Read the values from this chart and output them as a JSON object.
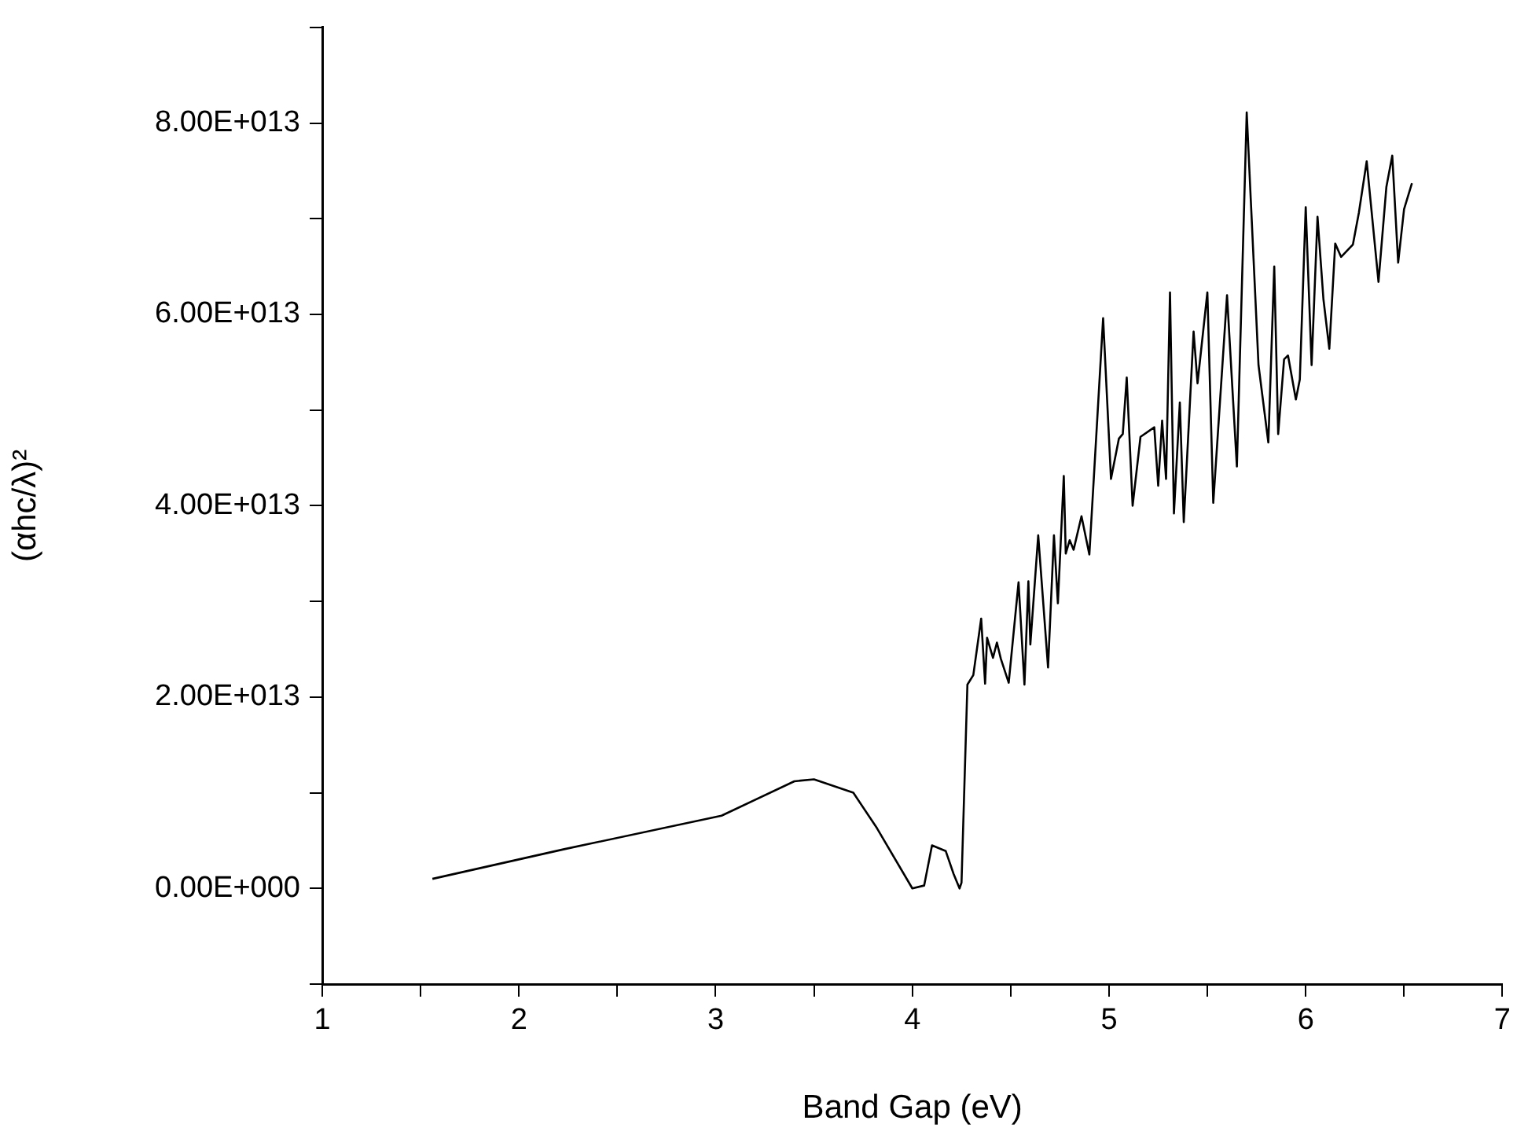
{
  "chart_data": {
    "type": "line",
    "xlabel": "Band Gap (eV)",
    "ylabel": "(αhc/λ)²",
    "series": [
      {
        "color": "#000000",
        "x": [
          1.56,
          2.23,
          3.03,
          3.4,
          3.5,
          3.7,
          3.82,
          4.0,
          4.06,
          4.1,
          4.17,
          4.21,
          4.24,
          4.25,
          4.28,
          4.31,
          4.35,
          4.37,
          4.38,
          4.41,
          4.43,
          4.45,
          4.49,
          4.54,
          4.57,
          4.59,
          4.6,
          4.64,
          4.69,
          4.72,
          4.74,
          4.77,
          4.78,
          4.8,
          4.82,
          4.86,
          4.9,
          4.97,
          5.01,
          5.05,
          5.07,
          5.09,
          5.12,
          5.16,
          5.23,
          5.25,
          5.27,
          5.29,
          5.31,
          5.33,
          5.36,
          5.38,
          5.43,
          5.45,
          5.5,
          5.53,
          5.6,
          5.65,
          5.7,
          5.76,
          5.81,
          5.84,
          5.86,
          5.89,
          5.91,
          5.95,
          5.97,
          6.0,
          6.03,
          6.06,
          6.09,
          6.12,
          6.15,
          6.18,
          6.24,
          6.27,
          6.31,
          6.37,
          6.41,
          6.44,
          6.47,
          6.5,
          6.54
        ],
        "values": [
          1000000000000.0,
          4100000000000.0,
          7600000000000.0,
          11200000000000.0,
          11400000000000.0,
          10000000000000.0,
          6300000000000.0,
          0,
          300000000000.0,
          4500000000000.0,
          3900000000000.0,
          1500000000000.0,
          0,
          600000000000.0,
          21300000000000.0,
          22300000000000.0,
          28200000000000.0,
          21400000000000.0,
          26200000000000.0,
          24100000000000.0,
          25700000000000.0,
          24000000000000.0,
          21500000000000.0,
          32000000000000.0,
          21300000000000.0,
          32100000000000.0,
          25500000000000.0,
          36900000000000.0,
          23100000000000.0,
          36900000000000.0,
          29800000000000.0,
          43100000000000.0,
          35000000000000.0,
          36400000000000.0,
          35400000000000.0,
          38900000000000.0,
          34900000000000.0,
          59600000000000.0,
          42800000000000.0,
          47000000000000.0,
          47500000000000.0,
          53400000000000.0,
          40000000000000.0,
          47200000000000.0,
          48200000000000.0,
          42100000000000.0,
          48900000000000.0,
          42800000000000.0,
          62300000000000.0,
          39200000000000.0,
          50800000000000.0,
          38300000000000.0,
          58200000000000.0,
          52800000000000.0,
          62300000000000.0,
          40300000000000.0,
          62000000000000.0,
          44100000000000.0,
          81100000000000.0,
          54700000000000.0,
          46600000000000.0,
          65000000000000.0,
          47500000000000.0,
          55300000000000.0,
          55700000000000.0,
          51100000000000.0,
          53200000000000.0,
          71200000000000.0,
          54700000000000.0,
          70200000000000.0,
          61600000000000.0,
          56400000000000.0,
          67400000000000.0,
          66000000000000.0,
          67300000000000.0,
          70600000000000.0,
          76000000000000.0,
          63400000000000.0,
          73300000000000.0,
          76600000000000.0,
          65400000000000.0,
          71000000000000.0,
          73700000000000.0
        ]
      }
    ],
    "xlim": [
      1,
      7
    ],
    "xticks": [
      1,
      {
        "value": 1.5,
        "label": null
      },
      2,
      {
        "value": 2.5,
        "label": null
      },
      3,
      {
        "value": 3.5,
        "label": null
      },
      4,
      {
        "value": 4.5,
        "label": null
      },
      5,
      {
        "value": 5.5,
        "label": null
      },
      6,
      {
        "value": 6.5,
        "label": null
      },
      7
    ],
    "ylim": [
      -10000000000000.0,
      90000000000000.0
    ],
    "yticks": [
      {
        "value": -10000000000000.0,
        "label": null
      },
      {
        "value": 0,
        "label": "0.00E+000"
      },
      {
        "value": 10000000000000.0,
        "label": null
      },
      {
        "value": 20000000000000.0,
        "label": "2.00E+013"
      },
      {
        "value": 30000000000000.0,
        "label": null
      },
      {
        "value": 40000000000000.0,
        "label": "4.00E+013"
      },
      {
        "value": 50000000000000.0,
        "label": null
      },
      {
        "value": 60000000000000.0,
        "label": "6.00E+013"
      },
      {
        "value": 70000000000000.0,
        "label": null
      },
      {
        "value": 80000000000000.0,
        "label": "8.00E+013"
      },
      {
        "value": 90000000000000.0,
        "label": null
      }
    ],
    "grid": false,
    "legend": false,
    "marker": "none",
    "line_style": "solid"
  }
}
